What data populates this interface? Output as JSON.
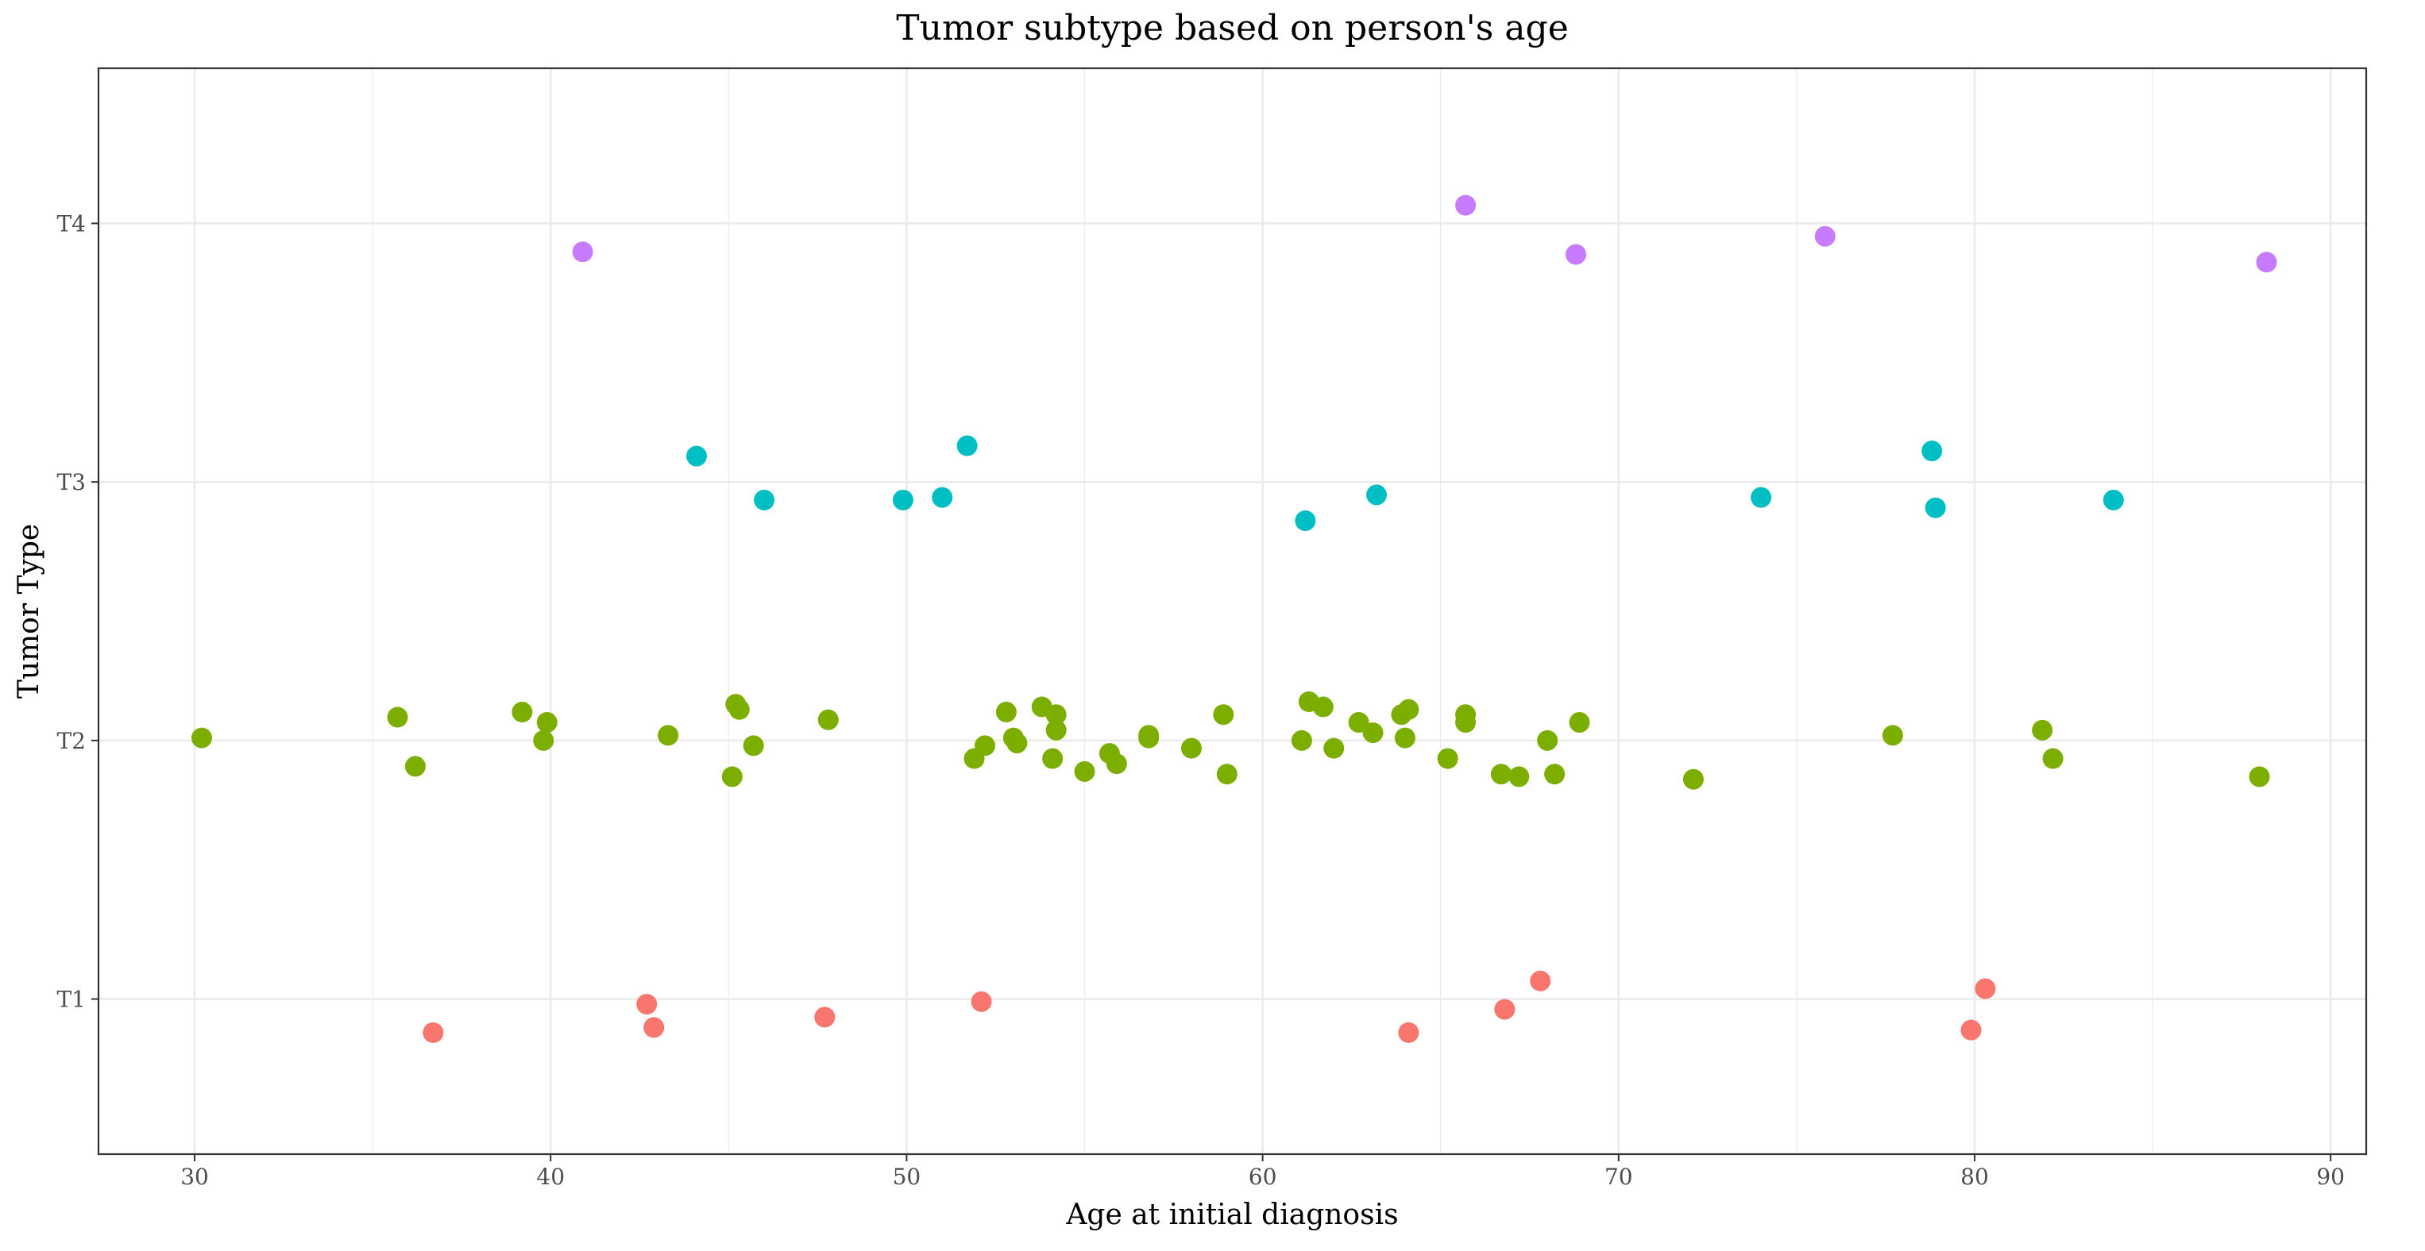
{
  "chart_data": {
    "type": "scatter",
    "title": "Tumor subtype based on person's age",
    "xlabel": "Age at initial diagnosis",
    "ylabel": "Tumor Type",
    "xlim": [
      27.3,
      91.0
    ],
    "x_ticks": [
      30,
      40,
      50,
      60,
      70,
      80,
      90
    ],
    "y_categories": [
      "T1",
      "T2",
      "T3",
      "T4"
    ],
    "ylim": [
      0.4,
      4.6
    ],
    "grid": true,
    "legend": "none",
    "series": [
      {
        "category": "T1",
        "color": "#F8766D",
        "points": [
          {
            "x": 36.7,
            "y": 0.87
          },
          {
            "x": 42.7,
            "y": 0.98
          },
          {
            "x": 42.9,
            "y": 0.89
          },
          {
            "x": 47.7,
            "y": 0.93
          },
          {
            "x": 52.1,
            "y": 0.99
          },
          {
            "x": 64.1,
            "y": 0.87
          },
          {
            "x": 66.8,
            "y": 0.96
          },
          {
            "x": 67.8,
            "y": 1.07
          },
          {
            "x": 79.9,
            "y": 0.88
          },
          {
            "x": 80.3,
            "y": 1.04
          }
        ]
      },
      {
        "category": "T2",
        "color": "#7CAE00",
        "points": [
          {
            "x": 30.2,
            "y": 2.01
          },
          {
            "x": 35.7,
            "y": 2.09
          },
          {
            "x": 36.2,
            "y": 1.9
          },
          {
            "x": 39.2,
            "y": 2.11
          },
          {
            "x": 39.8,
            "y": 2.0
          },
          {
            "x": 39.9,
            "y": 2.07
          },
          {
            "x": 43.3,
            "y": 2.02
          },
          {
            "x": 45.1,
            "y": 1.86
          },
          {
            "x": 45.2,
            "y": 2.14
          },
          {
            "x": 45.3,
            "y": 2.12
          },
          {
            "x": 45.7,
            "y": 1.98
          },
          {
            "x": 47.8,
            "y": 2.08
          },
          {
            "x": 51.9,
            "y": 1.93
          },
          {
            "x": 52.2,
            "y": 1.98
          },
          {
            "x": 52.8,
            "y": 2.11
          },
          {
            "x": 53.0,
            "y": 2.01
          },
          {
            "x": 53.1,
            "y": 1.99
          },
          {
            "x": 53.8,
            "y": 2.13
          },
          {
            "x": 54.1,
            "y": 1.93
          },
          {
            "x": 54.2,
            "y": 2.1
          },
          {
            "x": 54.2,
            "y": 2.04
          },
          {
            "x": 55.0,
            "y": 1.88
          },
          {
            "x": 55.7,
            "y": 1.95
          },
          {
            "x": 55.9,
            "y": 1.91
          },
          {
            "x": 56.8,
            "y": 2.02
          },
          {
            "x": 56.8,
            "y": 2.01
          },
          {
            "x": 58.0,
            "y": 1.97
          },
          {
            "x": 58.9,
            "y": 2.1
          },
          {
            "x": 59.0,
            "y": 1.87
          },
          {
            "x": 61.1,
            "y": 2.0
          },
          {
            "x": 61.3,
            "y": 2.15
          },
          {
            "x": 61.7,
            "y": 2.13
          },
          {
            "x": 62.0,
            "y": 1.97
          },
          {
            "x": 62.7,
            "y": 2.07
          },
          {
            "x": 63.1,
            "y": 2.03
          },
          {
            "x": 63.9,
            "y": 2.1
          },
          {
            "x": 64.1,
            "y": 2.12
          },
          {
            "x": 64.0,
            "y": 2.01
          },
          {
            "x": 65.2,
            "y": 1.93
          },
          {
            "x": 65.7,
            "y": 2.1
          },
          {
            "x": 65.7,
            "y": 2.07
          },
          {
            "x": 66.7,
            "y": 1.87
          },
          {
            "x": 67.2,
            "y": 1.86
          },
          {
            "x": 68.0,
            "y": 2.0
          },
          {
            "x": 68.2,
            "y": 1.87
          },
          {
            "x": 68.9,
            "y": 2.07
          },
          {
            "x": 72.1,
            "y": 1.85
          },
          {
            "x": 77.7,
            "y": 2.02
          },
          {
            "x": 81.9,
            "y": 2.04
          },
          {
            "x": 82.2,
            "y": 1.93
          },
          {
            "x": 88.0,
            "y": 1.86
          }
        ]
      },
      {
        "category": "T3",
        "color": "#00BFC4",
        "points": [
          {
            "x": 44.1,
            "y": 3.1
          },
          {
            "x": 46.0,
            "y": 2.93
          },
          {
            "x": 49.9,
            "y": 2.93
          },
          {
            "x": 51.0,
            "y": 2.94
          },
          {
            "x": 51.7,
            "y": 3.14
          },
          {
            "x": 61.2,
            "y": 2.85
          },
          {
            "x": 63.2,
            "y": 2.95
          },
          {
            "x": 74.0,
            "y": 2.94
          },
          {
            "x": 78.8,
            "y": 3.12
          },
          {
            "x": 78.9,
            "y": 2.9
          },
          {
            "x": 83.9,
            "y": 2.93
          }
        ]
      },
      {
        "category": "T4",
        "color": "#C77CFF",
        "points": [
          {
            "x": 40.9,
            "y": 3.89
          },
          {
            "x": 65.7,
            "y": 4.07
          },
          {
            "x": 68.8,
            "y": 3.88
          },
          {
            "x": 75.8,
            "y": 3.95
          },
          {
            "x": 88.2,
            "y": 3.85
          }
        ]
      }
    ]
  }
}
